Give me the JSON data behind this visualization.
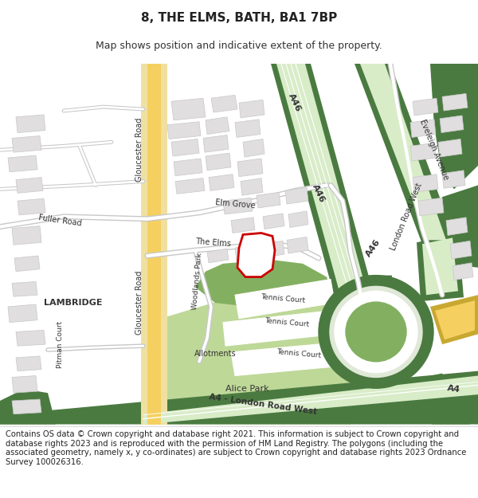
{
  "title": "8, THE ELMS, BATH, BA1 7BP",
  "subtitle": "Map shows position and indicative extent of the property.",
  "footer": "Contains OS data © Crown copyright and database right 2021. This information is subject to Crown copyright and database rights 2023 and is reproduced with the permission of HM Land Registry. The polygons (including the associated geometry, namely x, y co-ordinates) are subject to Crown copyright and database rights 2023 Ordnance Survey 100026316.",
  "bg_color": "#f0ede8",
  "green_dark": "#4a7a40",
  "green_mid": "#82b060",
  "green_light": "#c8daa0",
  "green_park": "#bed898",
  "yellow_road": "#f5d060",
  "yellow_road_edge": "#e8c040",
  "red_outline": "#cc0000",
  "building_fill": "#e0dede",
  "building_edge": "#c8c8c8",
  "road_white": "#ffffff",
  "road_gray_edge": "#c8c8c8",
  "title_fontsize": 11,
  "subtitle_fontsize": 9,
  "footer_fontsize": 7.2
}
